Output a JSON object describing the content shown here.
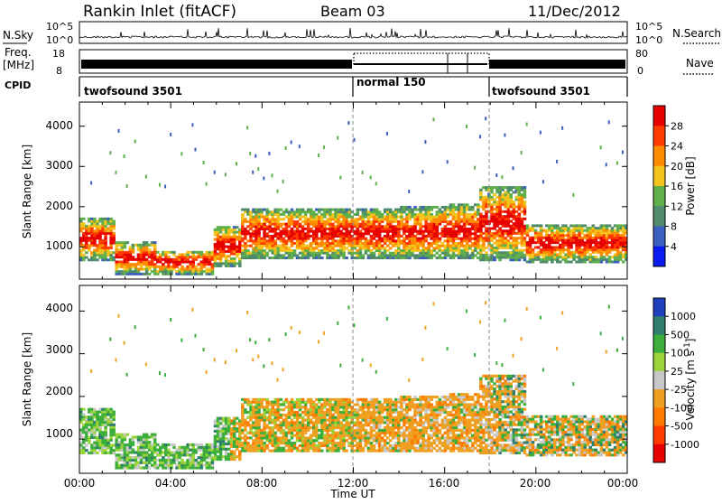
{
  "header": {
    "station": "Rankin Inlet (fitACF)",
    "beam": "Beam 03",
    "date": "11/Dec/2012"
  },
  "top_panels": {
    "nsky_label": "N.Sky",
    "nsky_ticks": [
      "10^5",
      "10^0"
    ],
    "nsearch_label": "N.Search",
    "nsearch_ticks": [
      "10^5",
      "10^0"
    ],
    "freq_label_1": "Freq.",
    "freq_label_2": "[MHz]",
    "freq_ticks": [
      "18",
      "8"
    ],
    "nave_label": "Nave",
    "nave_ticks": [
      "80",
      "0"
    ],
    "cpid_label": "CPID",
    "cpid_segments": [
      {
        "label": "twofsound 3501",
        "start_hour": 0,
        "end_hour": 12
      },
      {
        "label": "normal 150",
        "start_hour": 12,
        "end_hour": 18
      },
      {
        "label": "twofsound 3501",
        "start_hour": 18,
        "end_hour": 24
      }
    ]
  },
  "chart_data": [
    {
      "type": "heatmap",
      "title": "",
      "xlabel": "",
      "ylabel": "Slant Range [km]",
      "xlim": [
        0,
        24
      ],
      "ylim": [
        200,
        4600
      ],
      "yticks": [
        1000,
        2000,
        3000,
        4000
      ],
      "colorbar": {
        "label": "Power [dB]",
        "ticks": [
          4,
          8,
          12,
          16,
          20,
          24,
          28
        ],
        "colors": [
          "#0a1cf0",
          "#3a5fbf",
          "#4f8a6c",
          "#5fb04a",
          "#f3c41e",
          "#ff8c00",
          "#ff3a00",
          "#e60000"
        ]
      },
      "data_summary": "Backscatter power vs time and slant range; strong echoes (24-30 dB) at 600-1800 km through most of the day, weaker scattered echoes up to ~4200 km."
    },
    {
      "type": "heatmap",
      "title": "",
      "xlabel": "Time UT",
      "ylabel": "Slant Range [km]",
      "xlim": [
        0,
        24
      ],
      "ylim": [
        200,
        4600
      ],
      "yticks": [
        1000,
        2000,
        3000,
        4000
      ],
      "xticks": [
        "00:00",
        "04:00",
        "08:00",
        "12:00",
        "16:00",
        "20:00",
        "00:00"
      ],
      "colorbar": {
        "label": "Velocity [m s-1]",
        "ticks": [
          "1000",
          "500",
          "100",
          "25",
          "-25",
          "-100",
          "-500",
          "-1000"
        ],
        "colors": [
          "#1f3fbf",
          "#2e7d6e",
          "#3cae3c",
          "#9ad43a",
          "#c8c8c8",
          "#f0a020",
          "#ff7a00",
          "#ff3a00",
          "#e60000"
        ]
      },
      "data_summary": "Line-of-sight Doppler velocity vs time and slant range; mostly -100 to -500 m/s (orange) between 800-2000 km, green (positive) early in the day."
    }
  ],
  "axis_labels": {
    "power_ylabel": "Slant Range [km]",
    "vel_ylabel": "Slant Range [km]",
    "xlabel": "Time UT",
    "xticks": [
      "00:00",
      "04:00",
      "08:00",
      "12:00",
      "16:00",
      "20:00",
      "00:00"
    ],
    "yticks": [
      "1000",
      "2000",
      "3000",
      "4000"
    ],
    "power_cb_label": "Power [dB]",
    "power_cb_ticks": [
      "4",
      "8",
      "12",
      "16",
      "20",
      "24",
      "28"
    ],
    "vel_cb_label": "Velocity [m s",
    "vel_cb_sup": "-1",
    "vel_cb_ticks": [
      "1000",
      "500",
      "100",
      "25",
      "-25",
      "-100",
      "-500",
      "-1000"
    ]
  }
}
